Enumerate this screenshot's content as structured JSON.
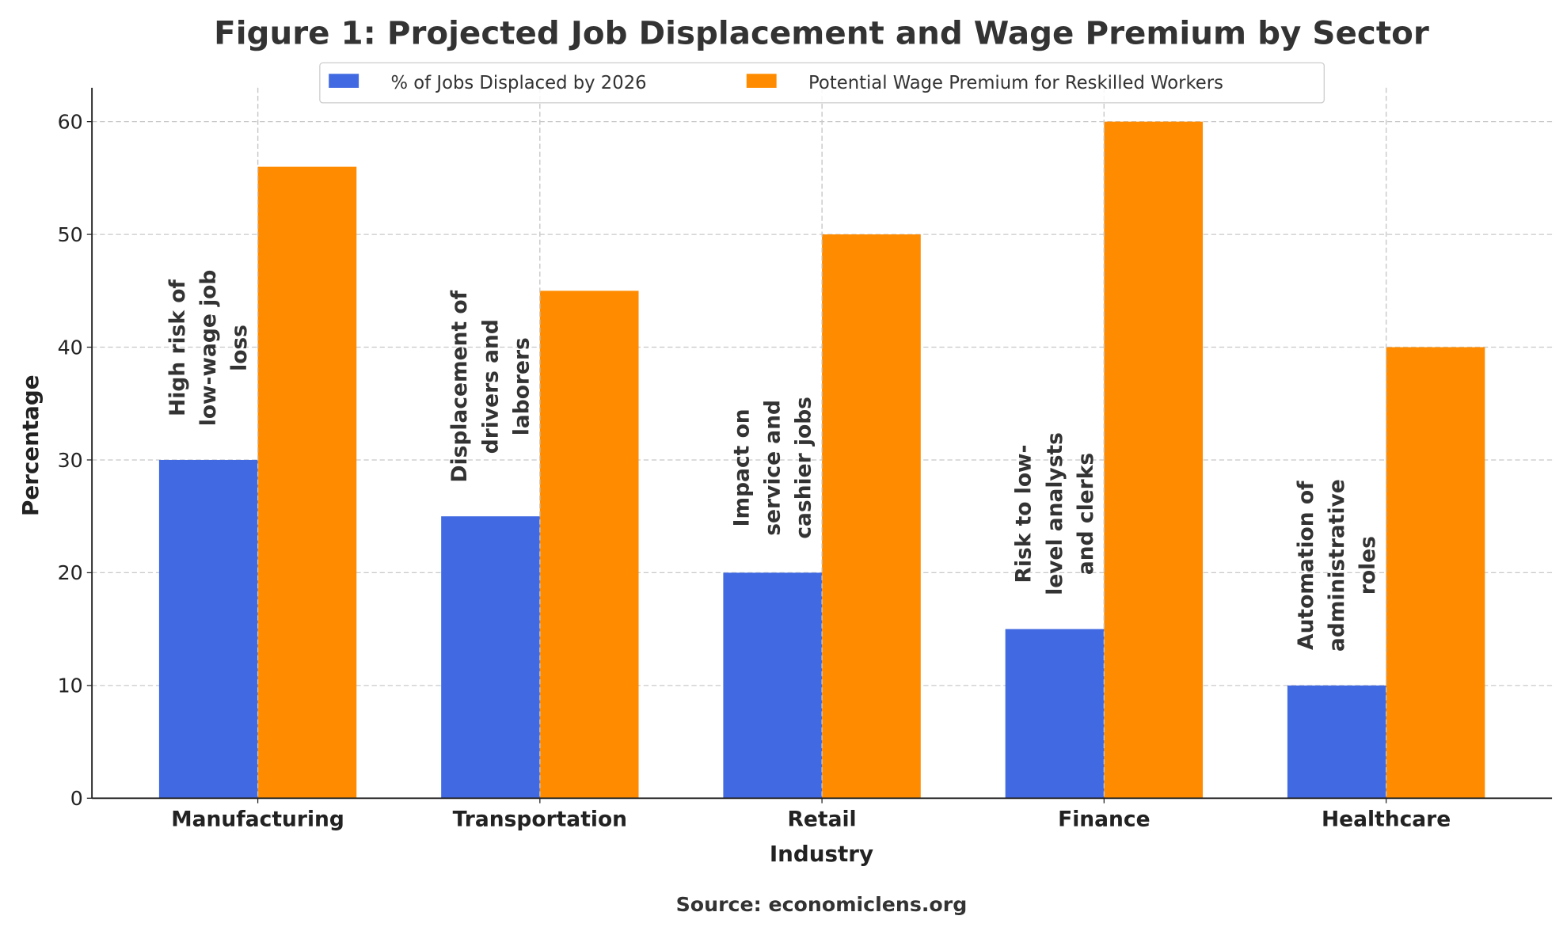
{
  "chart_data": {
    "type": "bar",
    "title": "Figure 1: Projected Job Displacement and Wage Premium by Sector",
    "xlabel": "Industry",
    "ylabel": "Percentage",
    "categories": [
      "Manufacturing",
      "Transportation",
      "Retail",
      "Finance",
      "Healthcare"
    ],
    "series": [
      {
        "name": "% of Jobs Displaced by 2026",
        "color": "#4169E1",
        "values": [
          30,
          25,
          20,
          15,
          10
        ]
      },
      {
        "name": "Potential Wage Premium for Reskilled Workers",
        "color": "#FF8C00",
        "values": [
          56,
          45,
          50,
          60,
          40
        ]
      }
    ],
    "annotations": [
      [
        "High risk of",
        "low-wage job",
        "loss"
      ],
      [
        "Displacement of",
        "drivers and",
        "laborers"
      ],
      [
        "Impact on",
        "service and",
        "cashier jobs"
      ],
      [
        "Risk to low-",
        "level analysts",
        "and clerks"
      ],
      [
        "Automation of",
        "administrative",
        "roles"
      ]
    ],
    "ylim": [
      0,
      63
    ],
    "yticks": [
      0,
      10,
      20,
      30,
      40,
      50,
      60
    ],
    "grid": true,
    "legend": "top-center",
    "source": "Source: economiclens.org"
  }
}
